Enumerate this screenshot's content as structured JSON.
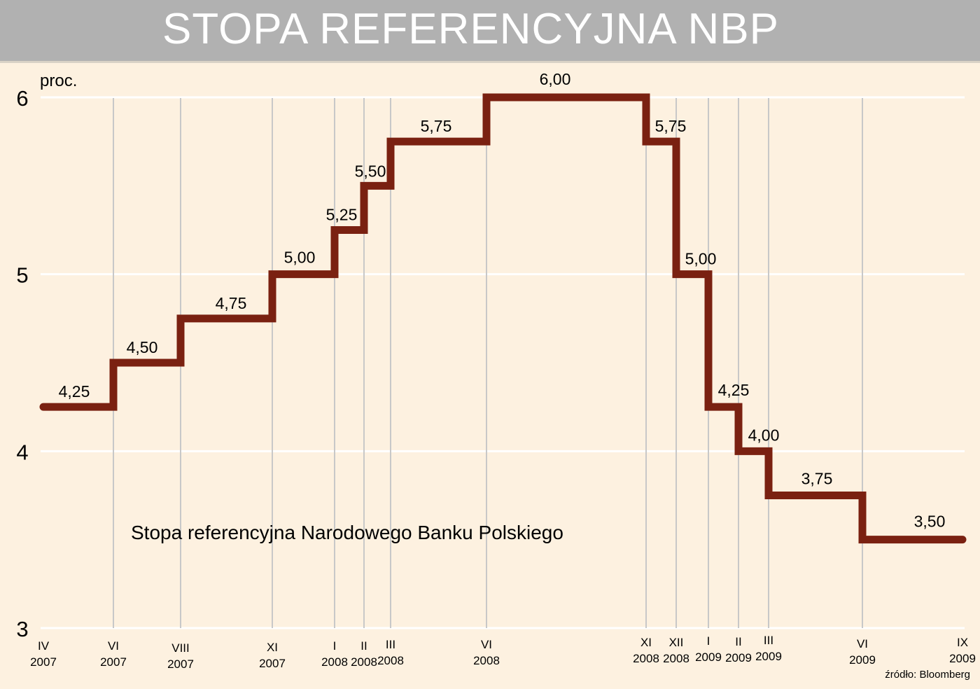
{
  "title": "STOPA REFERENCYJNA NBP",
  "source": "źródło: Bloomberg",
  "colors": {
    "background": "#fdf1e0",
    "title_bar": "#b1b1b1",
    "line": "#7a2111",
    "gridline": "#ffffff",
    "vline": "#c8c8c8"
  },
  "chart_data": {
    "type": "line",
    "step": true,
    "title": "STOPA REFERENCYJNA NBP",
    "ylabel": "proc.",
    "ylim": [
      3,
      6
    ],
    "yticks": [
      3,
      4,
      5,
      6
    ],
    "annotation": "Stopa referencyjna Narodowego Banku Polskiego",
    "grid": true,
    "ticks": [
      {
        "month": "IV",
        "year": "2007"
      },
      {
        "month": "VI",
        "year": "2007"
      },
      {
        "month": "VIII",
        "year": "2007"
      },
      {
        "month": "XI",
        "year": "2007"
      },
      {
        "month": "I",
        "year": "2008"
      },
      {
        "month": "II",
        "year": "2008"
      },
      {
        "month": "III",
        "year": "2008"
      },
      {
        "month": "VI",
        "year": "2008"
      },
      {
        "month": "XI",
        "year": "2008"
      },
      {
        "month": "XII",
        "year": "2008"
      },
      {
        "month": "I",
        "year": "2009"
      },
      {
        "month": "II",
        "year": "2009"
      },
      {
        "month": "III",
        "year": "2009"
      },
      {
        "month": "VI",
        "year": "2009"
      },
      {
        "month": "IX",
        "year": "2009"
      }
    ],
    "steps": [
      {
        "start": "IV 2007",
        "value": 4.25,
        "label": "4,25"
      },
      {
        "start": "VI 2007",
        "value": 4.5,
        "label": "4,50"
      },
      {
        "start": "VIII 2007",
        "value": 4.75,
        "label": "4,75"
      },
      {
        "start": "XI 2007",
        "value": 5.0,
        "label": "5,00"
      },
      {
        "start": "I 2008",
        "value": 5.25,
        "label": "5,25"
      },
      {
        "start": "II 2008",
        "value": 5.5,
        "label": "5,50"
      },
      {
        "start": "III 2008",
        "value": 5.75,
        "label": "5,75"
      },
      {
        "start": "VI 2008",
        "value": 6.0,
        "label": "6,00"
      },
      {
        "start": "XI 2008",
        "value": 5.75,
        "label": "5,75"
      },
      {
        "start": "XII 2008",
        "value": 5.0,
        "label": "5,00"
      },
      {
        "start": "I 2009",
        "value": 4.25,
        "label": "4,25"
      },
      {
        "start": "II 2009",
        "value": 4.0,
        "label": "4,00"
      },
      {
        "start": "III 2009",
        "value": 3.75,
        "label": "3,75"
      },
      {
        "start": "VI 2009",
        "value": 3.5,
        "label": "3,50"
      }
    ],
    "end": "IX 2009"
  }
}
